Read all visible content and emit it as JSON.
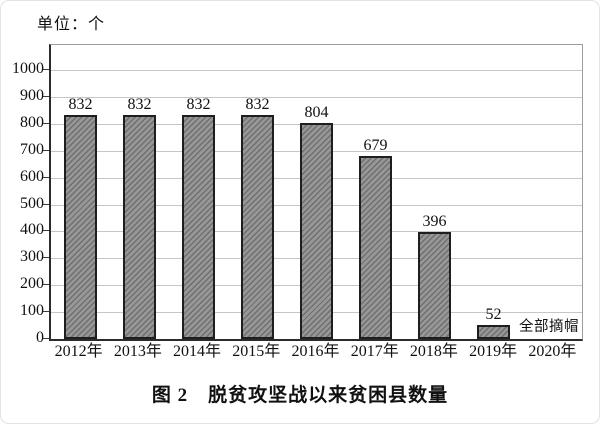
{
  "chart_data": {
    "type": "bar",
    "title": "图 2　脱贫攻坚战以来贫困县数量",
    "unit_label": "单位：个",
    "categories": [
      "2012年",
      "2013年",
      "2014年",
      "2015年",
      "2016年",
      "2017年",
      "2018年",
      "2019年",
      "2020年"
    ],
    "values": [
      832,
      832,
      832,
      832,
      804,
      679,
      396,
      52,
      null
    ],
    "bar_labels": [
      "832",
      "832",
      "832",
      "832",
      "804",
      "679",
      "396",
      "52",
      ""
    ],
    "annotation": {
      "text": "全部摘帽",
      "attached_to": "2019年"
    },
    "ylim": [
      0,
      1093
    ],
    "yticks": [
      0,
      100,
      200,
      300,
      400,
      500,
      600,
      700,
      800,
      900,
      1000
    ],
    "grid": "horizontal",
    "legend": "none",
    "colors": {
      "bar_fill": "#979797",
      "bar_hatch": "#6f6f6f",
      "bar_border": "#1e1e1e",
      "gridline": "#c6c6c6",
      "frame": "#9c9c9c",
      "axis": "#2b2b2b",
      "text": "#111111",
      "background": "#ffffff"
    }
  }
}
